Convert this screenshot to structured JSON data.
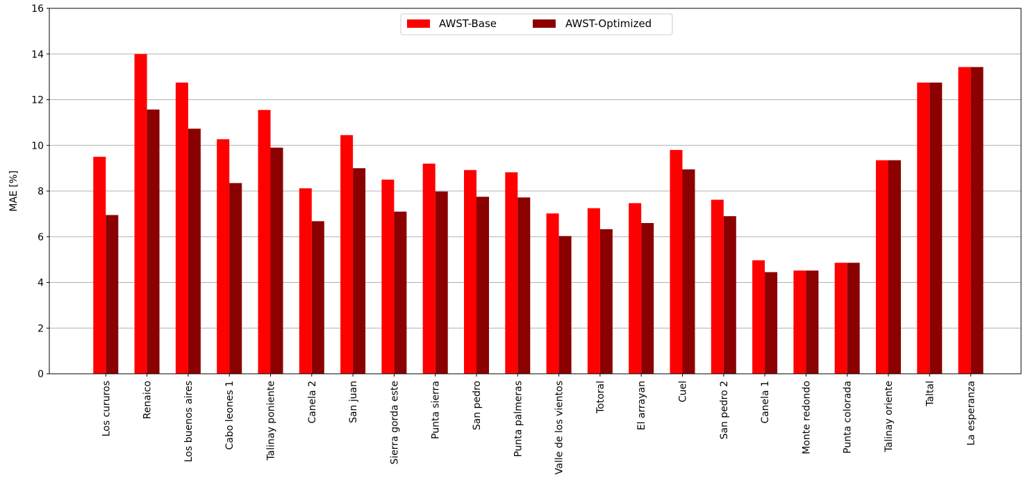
{
  "chart_data": {
    "type": "bar",
    "title": "",
    "xlabel": "",
    "ylabel": "MAE [%]",
    "ylim": [
      0,
      16
    ],
    "yticks": [
      0,
      2,
      4,
      6,
      8,
      10,
      12,
      14,
      16
    ],
    "grid": "y",
    "legend_position": "top-center",
    "categories": [
      "Los cururos",
      "Renaico",
      "Los buenos aires",
      "Cabo leones 1",
      "Talinay poniente",
      "Canela 2",
      "San juan",
      "Sierra gorda este",
      "Punta sierra",
      "San pedro",
      "Punta palmeras",
      "Valle de los vientos",
      "Totoral",
      "El arrayan",
      "Cuel",
      "San pedro 2",
      "Canela 1",
      "Monte redondo",
      "Punta colorada",
      "Talinay oriente",
      "Taltal",
      "La esperanza"
    ],
    "series": [
      {
        "name": "AWST-Base",
        "color": "#ff0000",
        "values": [
          9.5,
          14.0,
          12.75,
          10.27,
          11.55,
          8.12,
          10.45,
          8.5,
          9.2,
          8.92,
          8.82,
          7.02,
          7.25,
          7.47,
          9.8,
          7.62,
          4.97,
          4.52,
          4.86,
          9.35,
          12.75,
          13.43
        ]
      },
      {
        "name": "AWST-Optimized",
        "color": "#8b0000",
        "values": [
          6.95,
          11.57,
          10.73,
          8.35,
          9.9,
          6.68,
          9.0,
          7.1,
          7.98,
          7.75,
          7.72,
          6.03,
          6.33,
          6.6,
          8.95,
          6.9,
          4.45,
          4.52,
          4.86,
          9.35,
          12.75,
          13.43
        ]
      }
    ]
  }
}
